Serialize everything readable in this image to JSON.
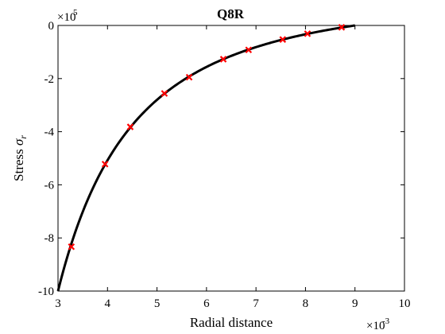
{
  "chart_data": {
    "type": "line",
    "title": "Q8R",
    "xlabel": "Radial distance",
    "ylabel_main": "Stress ",
    "ylabel_symbol": "σ",
    "ylabel_subscript": "r",
    "xlim": [
      0.003,
      0.01
    ],
    "ylim": [
      -1000000,
      0
    ],
    "x_ticks": [
      3,
      4,
      5,
      6,
      7,
      8,
      9,
      10
    ],
    "y_ticks": [
      0,
      -2,
      -4,
      -6,
      -8,
      -10
    ],
    "x_exponent_base": "×10",
    "x_exponent_power": "-3",
    "y_exponent_base": "×10",
    "y_exponent_power": "5",
    "grid": false,
    "series": [
      {
        "style": "solid-line",
        "color": "#000000",
        "curve": {
          "a": 0.003,
          "b": 0.009,
          "pressure": 1000000
        }
      },
      {
        "style": "x-markers",
        "color": "#ff0000",
        "x": [
          0.00327,
          0.00395,
          0.00446,
          0.00515,
          0.00565,
          0.00634,
          0.00685,
          0.00754,
          0.00804,
          0.00873
        ],
        "y": [
          -833000,
          -522000,
          -382000,
          -256000,
          -195000,
          -127000,
          -92000,
          -53000,
          -31000,
          -7000
        ]
      }
    ]
  }
}
